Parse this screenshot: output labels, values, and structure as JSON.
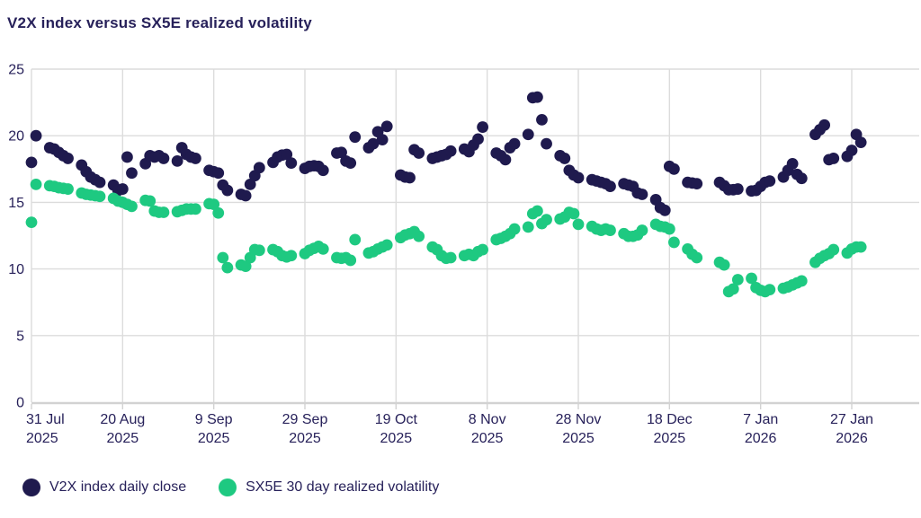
{
  "title": "V2X index versus SX5E realized volatility",
  "chart_data": {
    "type": "scatter",
    "title": "V2X index versus SX5E realized volatility",
    "grid": true,
    "legend_position": "bottom",
    "text_color": "#27215a",
    "grid_color": "#dcdcdc",
    "axis_color": "#d2d2d2",
    "x_axis": {
      "unit": "calendar days since 31 Jul 2025, business-day points",
      "ticks": [
        {
          "day": 0,
          "label": "31 Jul",
          "year": "2025"
        },
        {
          "day": 20,
          "label": "20 Aug",
          "year": "2025"
        },
        {
          "day": 40,
          "label": "9 Sep",
          "year": "2025"
        },
        {
          "day": 60,
          "label": "29 Sep",
          "year": "2025"
        },
        {
          "day": 80,
          "label": "19 Oct",
          "year": "2025"
        },
        {
          "day": 100,
          "label": "8 Nov",
          "year": "2025"
        },
        {
          "day": 120,
          "label": "28 Nov",
          "year": "2025"
        },
        {
          "day": 140,
          "label": "18 Dec",
          "year": "2025"
        },
        {
          "day": 160,
          "label": "7 Jan",
          "year": "2026"
        },
        {
          "day": 180,
          "label": "27 Jan",
          "year": "2026"
        }
      ]
    },
    "y_axis": {
      "min": 0,
      "max": 25,
      "tick_step": 5,
      "tick_labels": [
        "0",
        "5",
        "10",
        "15",
        "20",
        "25"
      ]
    },
    "series": [
      {
        "name": "V2X index daily close",
        "color": "#1f1a4e",
        "points": [
          [
            0,
            18.0
          ],
          [
            1,
            20.0
          ],
          [
            4,
            19.1
          ],
          [
            5,
            19.0
          ],
          [
            6,
            18.75
          ],
          [
            7,
            18.5
          ],
          [
            8,
            18.3
          ],
          [
            11,
            17.8
          ],
          [
            12,
            17.3
          ],
          [
            13,
            16.9
          ],
          [
            14,
            16.7
          ],
          [
            15,
            16.5
          ],
          [
            18,
            16.3
          ],
          [
            19,
            15.9
          ],
          [
            20,
            16.0
          ],
          [
            21,
            18.4
          ],
          [
            22,
            17.2
          ],
          [
            25,
            17.9
          ],
          [
            26,
            18.5
          ],
          [
            27,
            18.4
          ],
          [
            28,
            18.5
          ],
          [
            29,
            18.3
          ],
          [
            32,
            18.1
          ],
          [
            33,
            19.1
          ],
          [
            34,
            18.6
          ],
          [
            35,
            18.4
          ],
          [
            36,
            18.3
          ],
          [
            39,
            17.4
          ],
          [
            40,
            17.3
          ],
          [
            41,
            17.2
          ],
          [
            42,
            16.3
          ],
          [
            43,
            15.9
          ],
          [
            46,
            15.6
          ],
          [
            47,
            15.5
          ],
          [
            48,
            16.35
          ],
          [
            49,
            17.0
          ],
          [
            50,
            17.6
          ],
          [
            53,
            18.0
          ],
          [
            54,
            18.4
          ],
          [
            55,
            18.55
          ],
          [
            56,
            18.6
          ],
          [
            57,
            17.95
          ],
          [
            60,
            17.55
          ],
          [
            61,
            17.7
          ],
          [
            62,
            17.75
          ],
          [
            63,
            17.7
          ],
          [
            64,
            17.4
          ],
          [
            67,
            18.7
          ],
          [
            68,
            18.75
          ],
          [
            69,
            18.1
          ],
          [
            70,
            17.95
          ],
          [
            71,
            19.9
          ],
          [
            74,
            19.1
          ],
          [
            75,
            19.4
          ],
          [
            76,
            20.3
          ],
          [
            77,
            19.7
          ],
          [
            78,
            20.7
          ],
          [
            81,
            17.05
          ],
          [
            82,
            16.9
          ],
          [
            83,
            16.85
          ],
          [
            84,
            18.95
          ],
          [
            85,
            18.7
          ],
          [
            88,
            18.3
          ],
          [
            89,
            18.4
          ],
          [
            90,
            18.5
          ],
          [
            91,
            18.6
          ],
          [
            92,
            18.85
          ],
          [
            95,
            19.0
          ],
          [
            96,
            18.8
          ],
          [
            97,
            19.3
          ],
          [
            98,
            19.75
          ],
          [
            99,
            20.65
          ],
          [
            102,
            18.7
          ],
          [
            103,
            18.5
          ],
          [
            104,
            18.2
          ],
          [
            105,
            19.1
          ],
          [
            106,
            19.4
          ],
          [
            109,
            20.1
          ],
          [
            110,
            22.85
          ],
          [
            111,
            22.9
          ],
          [
            112,
            21.2
          ],
          [
            113,
            19.4
          ],
          [
            116,
            18.5
          ],
          [
            117,
            18.3
          ],
          [
            118,
            17.4
          ],
          [
            119,
            17.05
          ],
          [
            120,
            16.85
          ],
          [
            123,
            16.7
          ],
          [
            124,
            16.6
          ],
          [
            125,
            16.5
          ],
          [
            126,
            16.4
          ],
          [
            127,
            16.2
          ],
          [
            130,
            16.4
          ],
          [
            131,
            16.3
          ],
          [
            132,
            16.2
          ],
          [
            133,
            15.7
          ],
          [
            134,
            15.6
          ],
          [
            137,
            15.2
          ],
          [
            138,
            14.6
          ],
          [
            139,
            14.4
          ],
          [
            140,
            17.7
          ],
          [
            141,
            17.5
          ],
          [
            144,
            16.5
          ],
          [
            145,
            16.45
          ],
          [
            146,
            16.4
          ],
          [
            151,
            16.5
          ],
          [
            152,
            16.25
          ],
          [
            153,
            15.95
          ],
          [
            154,
            15.95
          ],
          [
            155,
            16.0
          ],
          [
            158,
            15.85
          ],
          [
            159,
            15.9
          ],
          [
            160,
            16.2
          ],
          [
            161,
            16.5
          ],
          [
            162,
            16.6
          ],
          [
            165,
            16.9
          ],
          [
            166,
            17.4
          ],
          [
            167,
            17.9
          ],
          [
            168,
            17.1
          ],
          [
            169,
            16.8
          ],
          [
            172,
            20.1
          ],
          [
            173,
            20.45
          ],
          [
            174,
            20.8
          ],
          [
            175,
            18.2
          ],
          [
            176,
            18.3
          ],
          [
            179,
            18.45
          ],
          [
            180,
            18.9
          ],
          [
            181,
            20.1
          ],
          [
            182,
            19.5
          ]
        ]
      },
      {
        "name": "SX5E 30 day realized volatility",
        "color": "#1ec981",
        "points": [
          [
            0,
            13.5
          ],
          [
            1,
            16.35
          ],
          [
            4,
            16.25
          ],
          [
            5,
            16.2
          ],
          [
            6,
            16.1
          ],
          [
            7,
            16.05
          ],
          [
            8,
            16.0
          ],
          [
            11,
            15.7
          ],
          [
            12,
            15.6
          ],
          [
            13,
            15.55
          ],
          [
            14,
            15.5
          ],
          [
            15,
            15.45
          ],
          [
            18,
            15.3
          ],
          [
            19,
            15.1
          ],
          [
            20,
            15.0
          ],
          [
            21,
            14.85
          ],
          [
            22,
            14.7
          ],
          [
            25,
            15.15
          ],
          [
            26,
            15.1
          ],
          [
            27,
            14.35
          ],
          [
            28,
            14.25
          ],
          [
            29,
            14.25
          ],
          [
            32,
            14.3
          ],
          [
            33,
            14.4
          ],
          [
            34,
            14.5
          ],
          [
            35,
            14.5
          ],
          [
            36,
            14.5
          ],
          [
            39,
            14.9
          ],
          [
            40,
            14.85
          ],
          [
            41,
            14.2
          ],
          [
            42,
            10.85
          ],
          [
            43,
            10.1
          ],
          [
            46,
            10.3
          ],
          [
            47,
            10.2
          ],
          [
            48,
            10.85
          ],
          [
            49,
            11.45
          ],
          [
            50,
            11.4
          ],
          [
            53,
            11.45
          ],
          [
            54,
            11.3
          ],
          [
            55,
            11.0
          ],
          [
            56,
            10.9
          ],
          [
            57,
            11.0
          ],
          [
            60,
            11.15
          ],
          [
            61,
            11.4
          ],
          [
            62,
            11.55
          ],
          [
            63,
            11.7
          ],
          [
            64,
            11.5
          ],
          [
            67,
            10.85
          ],
          [
            68,
            10.8
          ],
          [
            69,
            10.85
          ],
          [
            70,
            10.65
          ],
          [
            71,
            12.2
          ],
          [
            74,
            11.2
          ],
          [
            75,
            11.3
          ],
          [
            76,
            11.5
          ],
          [
            77,
            11.65
          ],
          [
            78,
            11.8
          ],
          [
            81,
            12.35
          ],
          [
            82,
            12.55
          ],
          [
            83,
            12.65
          ],
          [
            84,
            12.8
          ],
          [
            85,
            12.45
          ],
          [
            88,
            11.65
          ],
          [
            89,
            11.45
          ],
          [
            90,
            11.0
          ],
          [
            91,
            10.8
          ],
          [
            92,
            10.85
          ],
          [
            95,
            11.0
          ],
          [
            96,
            11.1
          ],
          [
            97,
            11.0
          ],
          [
            98,
            11.3
          ],
          [
            99,
            11.45
          ],
          [
            102,
            12.2
          ],
          [
            103,
            12.3
          ],
          [
            104,
            12.45
          ],
          [
            105,
            12.65
          ],
          [
            106,
            13.0
          ],
          [
            109,
            13.15
          ],
          [
            110,
            14.15
          ],
          [
            111,
            14.35
          ],
          [
            112,
            13.4
          ],
          [
            113,
            13.7
          ],
          [
            116,
            13.75
          ],
          [
            117,
            13.9
          ],
          [
            118,
            14.25
          ],
          [
            119,
            14.15
          ],
          [
            120,
            13.35
          ],
          [
            123,
            13.2
          ],
          [
            124,
            13.0
          ],
          [
            125,
            12.9
          ],
          [
            126,
            13.0
          ],
          [
            127,
            12.9
          ],
          [
            130,
            12.65
          ],
          [
            131,
            12.45
          ],
          [
            132,
            12.45
          ],
          [
            133,
            12.55
          ],
          [
            134,
            12.9
          ],
          [
            137,
            13.35
          ],
          [
            138,
            13.2
          ],
          [
            139,
            13.15
          ],
          [
            140,
            13.0
          ],
          [
            141,
            12.0
          ],
          [
            144,
            11.5
          ],
          [
            145,
            11.1
          ],
          [
            146,
            10.85
          ],
          [
            151,
            10.5
          ],
          [
            152,
            10.3
          ],
          [
            153,
            8.3
          ],
          [
            154,
            8.5
          ],
          [
            155,
            9.2
          ],
          [
            158,
            9.3
          ],
          [
            159,
            8.6
          ],
          [
            160,
            8.4
          ],
          [
            161,
            8.3
          ],
          [
            162,
            8.45
          ],
          [
            165,
            8.55
          ],
          [
            166,
            8.65
          ],
          [
            167,
            8.8
          ],
          [
            168,
            8.95
          ],
          [
            169,
            9.1
          ],
          [
            172,
            10.5
          ],
          [
            173,
            10.8
          ],
          [
            174,
            11.0
          ],
          [
            175,
            11.15
          ],
          [
            176,
            11.45
          ],
          [
            179,
            11.2
          ],
          [
            180,
            11.5
          ],
          [
            181,
            11.65
          ],
          [
            182,
            11.65
          ]
        ]
      }
    ]
  },
  "legend": {
    "v2x_label": "V2X index daily close",
    "sx5e_label": "SX5E 30 day realized volatility"
  }
}
